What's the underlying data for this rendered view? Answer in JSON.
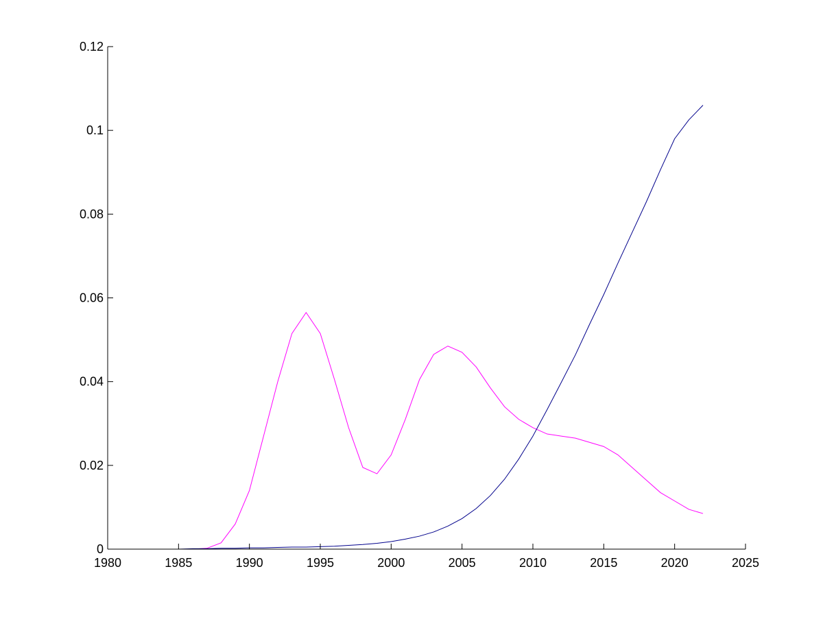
{
  "chart_data": {
    "type": "line",
    "title": "",
    "xlabel": "",
    "ylabel": "",
    "xlim": [
      1980,
      2025
    ],
    "ylim": [
      0,
      0.12
    ],
    "grid": false,
    "legend": "none",
    "x_ticks": [
      1980,
      1985,
      1990,
      1995,
      2000,
      2005,
      2010,
      2015,
      2020,
      2025
    ],
    "x_tick_labels": [
      "1980",
      "1985",
      "1990",
      "1995",
      "2000",
      "2005",
      "2010",
      "2015",
      "2020",
      "2025"
    ],
    "y_ticks": [
      0,
      0.02,
      0.04,
      0.06,
      0.08,
      0.1,
      0.12
    ],
    "y_tick_labels": [
      "0",
      "0.02",
      "0.04",
      "0.06",
      "0.08",
      "0.1",
      "0.12"
    ],
    "x": [
      1980,
      1981,
      1982,
      1983,
      1984,
      1985,
      1986,
      1987,
      1988,
      1989,
      1990,
      1991,
      1992,
      1993,
      1994,
      1995,
      1996,
      1997,
      1998,
      1999,
      2000,
      2001,
      2002,
      2003,
      2004,
      2005,
      2006,
      2007,
      2008,
      2009,
      2010,
      2011,
      2012,
      2013,
      2014,
      2015,
      2016,
      2017,
      2018,
      2019,
      2020,
      2021,
      2022
    ],
    "series": [
      {
        "color": "#ff00ff",
        "values": [
          0,
          0,
          0,
          0,
          0,
          0,
          0,
          0.0002,
          0.0015,
          0.006,
          0.014,
          0.027,
          0.04,
          0.0515,
          0.0565,
          0.0515,
          0.0405,
          0.029,
          0.0195,
          0.018,
          0.0225,
          0.031,
          0.0405,
          0.0465,
          0.0485,
          0.047,
          0.0435,
          0.0385,
          0.034,
          0.031,
          0.029,
          0.0275,
          0.027,
          0.0265,
          0.0255,
          0.0245,
          0.0225,
          0.0195,
          0.0165,
          0.0135,
          0.0115,
          0.0095,
          0.0085
        ]
      },
      {
        "color": "#00008b",
        "values": [
          0,
          0,
          0,
          0,
          0,
          0,
          0.0001,
          0.0001,
          0.0002,
          0.0002,
          0.0003,
          0.0003,
          0.0004,
          0.0005,
          0.0005,
          0.0006,
          0.0007,
          0.0009,
          0.0011,
          0.0014,
          0.0018,
          0.0024,
          0.0031,
          0.0041,
          0.0055,
          0.0073,
          0.0097,
          0.0128,
          0.0167,
          0.0215,
          0.027,
          0.0333,
          0.0398,
          0.0464,
          0.0537,
          0.0608,
          0.0683,
          0.0756,
          0.0829,
          0.0906,
          0.098,
          0.1025,
          0.106
        ]
      }
    ]
  }
}
